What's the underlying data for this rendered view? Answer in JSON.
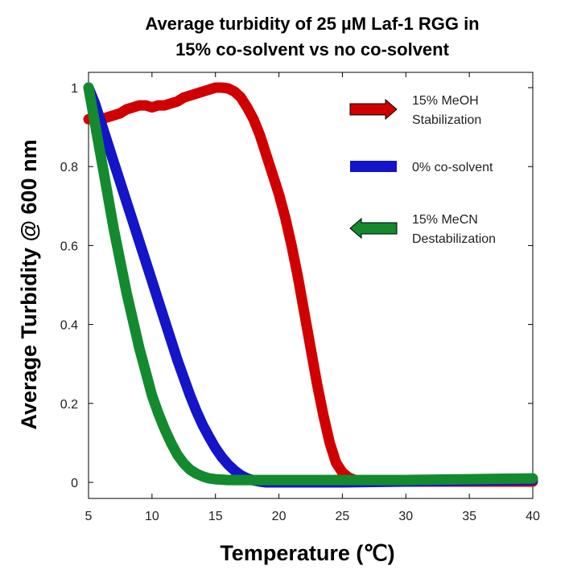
{
  "chart_data": {
    "type": "line",
    "title_lines": [
      "Average turbidity of 25 µM Laf-1 RGG in",
      "15% co-solvent vs no co-solvent"
    ],
    "xlabel": "Temperature (℃)",
    "ylabel": "Average Turbidity @ 600 nm",
    "xlim": [
      5,
      40
    ],
    "ylim": [
      0,
      1
    ],
    "xticks": [
      5,
      10,
      15,
      20,
      25,
      30,
      35,
      40
    ],
    "yticks": [
      0,
      0.2,
      0.4,
      0.6,
      0.8,
      1
    ],
    "xtick_labels": [
      "5",
      "10",
      "15",
      "20",
      "25",
      "30",
      "35",
      "40"
    ],
    "ytick_labels": [
      "0",
      "0.2",
      "0.4",
      "0.6",
      "0.8",
      "1"
    ],
    "grid": false,
    "series": [
      {
        "name": "15% MeOH Stabilization",
        "color": "#d10000",
        "x": [
          5,
          5.5,
          6,
          6.5,
          7,
          7.5,
          8,
          8.5,
          9,
          9.5,
          10,
          10.5,
          11,
          11.5,
          12,
          12.5,
          13,
          13.5,
          14,
          14.5,
          15,
          15.5,
          16,
          16.5,
          17,
          17.5,
          18,
          18.5,
          19,
          19.5,
          20,
          20.5,
          21,
          21.5,
          22,
          22.5,
          23,
          23.5,
          24,
          24.5,
          25,
          25.5,
          26,
          27,
          28,
          30,
          32,
          35,
          38,
          40
        ],
        "y": [
          0.92,
          0.92,
          0.92,
          0.925,
          0.93,
          0.935,
          0.945,
          0.95,
          0.955,
          0.955,
          0.95,
          0.955,
          0.955,
          0.96,
          0.965,
          0.975,
          0.98,
          0.985,
          0.99,
          0.995,
          1.0,
          1.0,
          0.998,
          0.99,
          0.975,
          0.95,
          0.92,
          0.88,
          0.83,
          0.78,
          0.73,
          0.67,
          0.6,
          0.52,
          0.43,
          0.34,
          0.25,
          0.17,
          0.1,
          0.05,
          0.025,
          0.012,
          0.006,
          0.003,
          0.002,
          0.002,
          0.002,
          0.002,
          0.002,
          0.002
        ]
      },
      {
        "name": "0% co-solvent",
        "color": "#1414c8",
        "x": [
          5,
          5.5,
          6,
          6.5,
          7,
          7.5,
          8,
          8.5,
          9,
          9.5,
          10,
          10.5,
          11,
          11.5,
          12,
          12.5,
          13,
          13.5,
          14,
          14.5,
          15,
          15.5,
          16,
          16.5,
          17,
          17.5,
          18,
          18.5,
          19,
          20,
          22,
          25,
          30,
          35,
          40
        ],
        "y": [
          1.0,
          0.96,
          0.91,
          0.86,
          0.81,
          0.76,
          0.71,
          0.66,
          0.61,
          0.56,
          0.51,
          0.46,
          0.41,
          0.36,
          0.31,
          0.265,
          0.22,
          0.18,
          0.145,
          0.115,
          0.087,
          0.064,
          0.045,
          0.03,
          0.018,
          0.01,
          0.005,
          0.002,
          0.0,
          0.0,
          0.0,
          0.0,
          0.002,
          0.004,
          0.006
        ]
      },
      {
        "name": "15% MeCN Destabilization",
        "color": "#138a2e",
        "x": [
          5,
          5.5,
          6,
          6.5,
          7,
          7.5,
          8,
          8.5,
          9,
          9.5,
          10,
          10.5,
          11,
          11.5,
          12,
          12.5,
          13,
          13.5,
          14,
          14.5,
          15,
          16,
          17,
          18,
          20,
          22,
          25,
          30,
          35,
          40
        ],
        "y": [
          1.0,
          0.91,
          0.82,
          0.73,
          0.64,
          0.56,
          0.48,
          0.41,
          0.34,
          0.28,
          0.22,
          0.175,
          0.135,
          0.1,
          0.07,
          0.048,
          0.032,
          0.022,
          0.015,
          0.01,
          0.008,
          0.006,
          0.006,
          0.006,
          0.006,
          0.006,
          0.006,
          0.006,
          0.008,
          0.01
        ]
      }
    ],
    "legend": {
      "placement": "top-right",
      "entries": [
        {
          "lines": [
            "15% MeOH",
            "Stabilization"
          ],
          "color": "#d10000",
          "marker": "right-arrow"
        },
        {
          "lines": [
            "0% co-solvent"
          ],
          "color": "#1414c8",
          "marker": "bar"
        },
        {
          "lines": [
            "15% MeCN",
            "Destabilization"
          ],
          "color": "#138a2e",
          "marker": "left-arrow"
        }
      ]
    }
  }
}
